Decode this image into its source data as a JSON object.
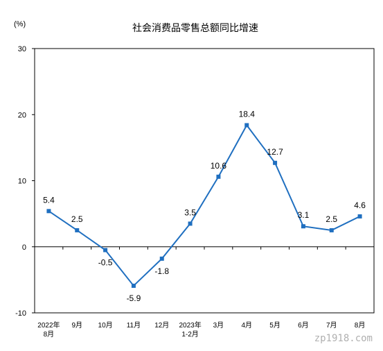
{
  "chart_data": {
    "type": "line",
    "title": "社会消费品零售总额同比增速",
    "unit_label": "(%)",
    "categories": [
      [
        "2022年",
        "8月"
      ],
      [
        "9月"
      ],
      [
        "10月"
      ],
      [
        "11月"
      ],
      [
        "12月"
      ],
      [
        "2023年",
        "1-2月"
      ],
      [
        "3月"
      ],
      [
        "4月"
      ],
      [
        "5月"
      ],
      [
        "6月"
      ],
      [
        "7月"
      ],
      [
        "8月"
      ]
    ],
    "series": [
      {
        "values": [
          5.4,
          2.5,
          -0.5,
          -5.9,
          -1.8,
          3.5,
          10.6,
          18.4,
          12.7,
          3.1,
          2.5,
          4.6
        ],
        "labels": [
          "5.4",
          "2.5",
          "-0.5",
          "-5.9",
          "-1.8",
          "3.5",
          "10.6",
          "18.4",
          "12.7",
          "3.1",
          "2.5",
          "4.6"
        ],
        "color": "#1f6fc0"
      }
    ],
    "ylim": [
      -10,
      30
    ],
    "yticks": [
      -10,
      0,
      10,
      20,
      30
    ],
    "label_position": [
      "above",
      "above",
      "below",
      "below",
      "below",
      "above",
      "above",
      "above",
      "above",
      "above",
      "above",
      "above"
    ]
  },
  "watermark": "zp1918.com"
}
